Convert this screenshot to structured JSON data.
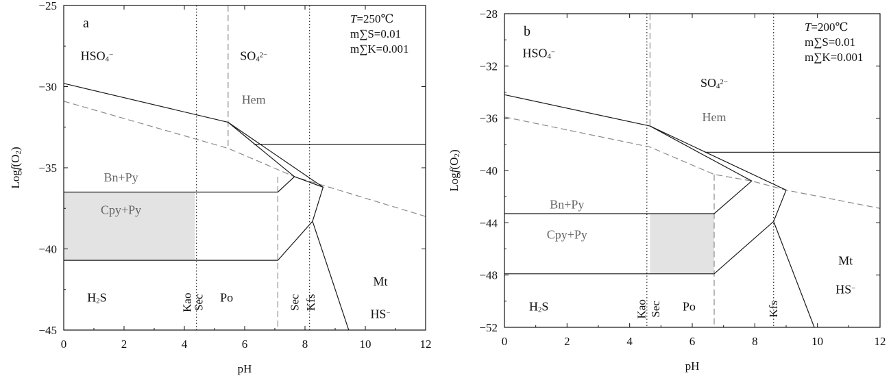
{
  "chart_data": [
    {
      "type": "phase-diagram",
      "panel_label": "a",
      "xlabel": "pH",
      "ylabel": "Log f(O₂)",
      "xlim": [
        0,
        12
      ],
      "ylim": [
        -45,
        -25
      ],
      "xticks": [
        0,
        2,
        4,
        6,
        8,
        10,
        12
      ],
      "yticks": [
        -25,
        -30,
        -35,
        -40,
        -45
      ],
      "conditions": {
        "T_symbol": "T",
        "T_value": "=250℃",
        "line2": "m∑S=0.01",
        "line3": "m∑K=0.001"
      },
      "regions": [
        {
          "label": "HSO₄⁻",
          "x": 1.1,
          "y": -28.1
        },
        {
          "label": "SO₄²⁻",
          "x": 6.3,
          "y": -28.1
        },
        {
          "label": "Hem",
          "x": 6.3,
          "y": -30.8,
          "style": "gray"
        },
        {
          "label": "Bn+Py",
          "x": 1.9,
          "y": -35.6,
          "style": "gray"
        },
        {
          "label": "Cpy+Py",
          "x": 1.9,
          "y": -37.6,
          "style": "gray"
        },
        {
          "label": "H₂S",
          "x": 1.1,
          "y": -43.0
        },
        {
          "label": "Po",
          "x": 5.4,
          "y": -43.0
        },
        {
          "label": "Mt",
          "x": 10.5,
          "y": -42.0
        },
        {
          "label": "HS⁻",
          "x": 10.5,
          "y": -44.0
        }
      ],
      "vertical_labels": [
        {
          "label": "Kao",
          "x": 4.22,
          "y": -43.3
        },
        {
          "label": "Sec",
          "x": 4.6,
          "y": -43.3
        },
        {
          "label": "Sec",
          "x": 7.78,
          "y": -43.3
        },
        {
          "label": "Kfs",
          "x": 8.32,
          "y": -43.3
        }
      ],
      "shaded_regions": [
        {
          "points": [
            [
              0,
              -36.5
            ],
            [
              4.35,
              -36.5
            ],
            [
              4.35,
              -40.7
            ],
            [
              0,
              -40.7
            ]
          ]
        }
      ],
      "solid_lines": [
        [
          [
            0,
            -29.8
          ],
          [
            5.45,
            -32.2
          ],
          [
            7.65,
            -35.55
          ],
          [
            8.6,
            -36.2
          ],
          [
            8.25,
            -38.3
          ],
          [
            7.1,
            -40.7
          ],
          [
            0,
            -40.7
          ]
        ],
        [
          [
            5.45,
            -32.2
          ],
          [
            8.6,
            -36.2
          ]
        ],
        [
          [
            0,
            -36.5
          ],
          [
            7.1,
            -36.5
          ],
          [
            7.65,
            -35.55
          ]
        ],
        [
          [
            8.25,
            -38.3
          ],
          [
            9.45,
            -45
          ]
        ],
        [
          [
            6.3,
            -33.55
          ],
          [
            12,
            -33.55
          ]
        ]
      ],
      "dashed_lines": [
        [
          [
            0,
            -30.9
          ],
          [
            5.45,
            -33.8
          ],
          [
            7.65,
            -35.55
          ],
          [
            12,
            -38.0
          ]
        ],
        [
          [
            5.45,
            -25
          ],
          [
            5.45,
            -33.8
          ]
        ],
        [
          [
            7.1,
            -35.55
          ],
          [
            7.1,
            -45
          ]
        ]
      ],
      "dotted_lines": [
        [
          [
            4.4,
            -25
          ],
          [
            4.4,
            -45
          ]
        ],
        [
          [
            8.15,
            -25
          ],
          [
            8.15,
            -45
          ]
        ]
      ]
    },
    {
      "type": "phase-diagram",
      "panel_label": "b",
      "xlabel": "pH",
      "ylabel": "Log f(O₂)",
      "xlim": [
        0,
        12
      ],
      "ylim": [
        -52,
        -28
      ],
      "xticks": [
        0,
        2,
        4,
        6,
        8,
        10,
        12
      ],
      "yticks": [
        -28,
        -32,
        -36,
        -40,
        -44,
        -48,
        -52
      ],
      "conditions": {
        "T_symbol": "T",
        "T_value": "=200℃",
        "line2": "m∑S=0.01",
        "line3": "m∑K=0.001"
      },
      "regions": [
        {
          "label": "HSO₄⁻",
          "x": 1.1,
          "y": -31.0
        },
        {
          "label": "SO₄²⁻",
          "x": 6.7,
          "y": -33.3
        },
        {
          "label": "Hem",
          "x": 6.7,
          "y": -35.9,
          "style": "gray"
        },
        {
          "label": "Bn+Py",
          "x": 2.0,
          "y": -42.6,
          "style": "gray"
        },
        {
          "label": "Cpy+Py",
          "x": 2.0,
          "y": -44.9,
          "style": "gray"
        },
        {
          "label": "H₂S",
          "x": 1.1,
          "y": -50.4
        },
        {
          "label": "Po",
          "x": 5.9,
          "y": -50.4
        },
        {
          "label": "Mt",
          "x": 10.9,
          "y": -46.9
        },
        {
          "label": "HS⁻",
          "x": 10.9,
          "y": -49.1
        }
      ],
      "vertical_labels": [
        {
          "label": "Kao",
          "x": 4.5,
          "y": -50.6
        },
        {
          "label": "Sec",
          "x": 4.95,
          "y": -50.6
        },
        {
          "label": "Kfs",
          "x": 8.72,
          "y": -50.6
        }
      ],
      "shaded_regions": [
        {
          "points": [
            [
              4.65,
              -43.3
            ],
            [
              6.7,
              -43.3
            ],
            [
              6.7,
              -47.9
            ],
            [
              4.65,
              -47.9
            ]
          ]
        }
      ],
      "solid_lines": [
        [
          [
            0,
            -34.2
          ],
          [
            4.65,
            -36.6
          ],
          [
            7.9,
            -40.8
          ],
          [
            6.7,
            -43.3
          ],
          [
            0,
            -43.3
          ]
        ],
        [
          [
            4.65,
            -36.6
          ],
          [
            9.0,
            -41.5
          ],
          [
            8.6,
            -43.9
          ],
          [
            6.7,
            -47.9
          ],
          [
            0,
            -47.9
          ]
        ],
        [
          [
            6.4,
            -38.6
          ],
          [
            12,
            -38.6
          ]
        ],
        [
          [
            8.6,
            -43.9
          ],
          [
            9.9,
            -52
          ]
        ]
      ],
      "dashed_lines": [
        [
          [
            0,
            -35.9
          ],
          [
            4.65,
            -38.2
          ],
          [
            6.7,
            -40.3
          ],
          [
            7.9,
            -40.8
          ],
          [
            9.0,
            -41.5
          ],
          [
            12,
            -42.9
          ]
        ],
        [
          [
            4.65,
            -28
          ],
          [
            4.65,
            -36.6
          ]
        ],
        [
          [
            6.7,
            -40.3
          ],
          [
            6.7,
            -52
          ]
        ]
      ],
      "dotted_lines": [
        [
          [
            4.55,
            -28
          ],
          [
            4.55,
            -52
          ]
        ],
        [
          [
            8.6,
            -28
          ],
          [
            8.6,
            -52
          ]
        ]
      ]
    }
  ]
}
